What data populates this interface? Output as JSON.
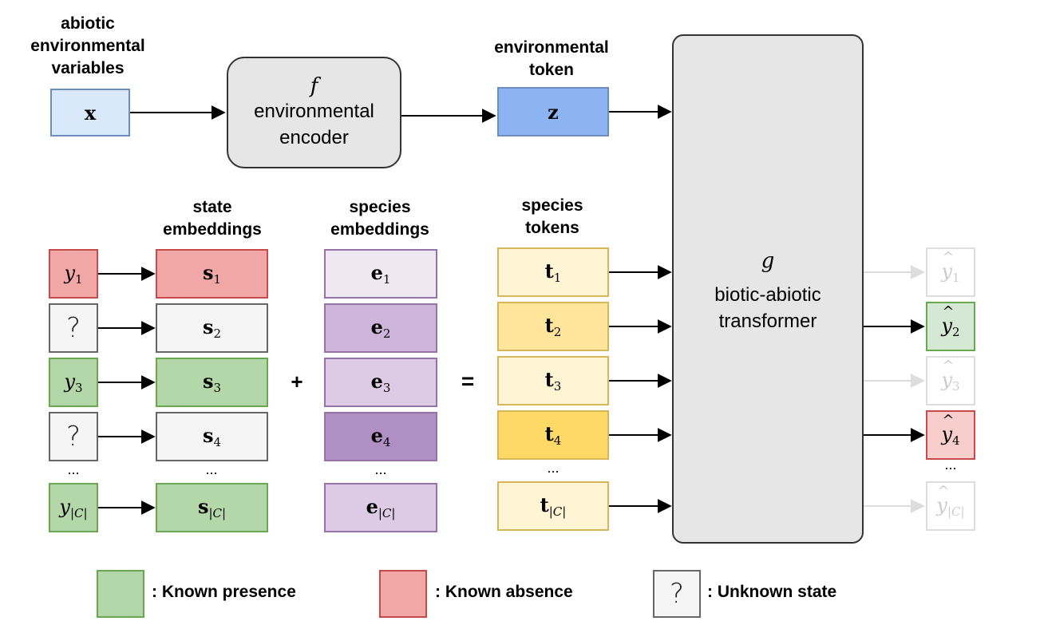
{
  "headers": {
    "abiotic": "abiotic\nenvironmental\nvariables",
    "env_token": "environmental\ntoken",
    "state_emb": "state\nembeddings",
    "species_emb": "species\nembeddings",
    "species_tokens": "species\ntokens"
  },
  "encoder": {
    "symbol": "f",
    "label": "environmental\nencoder"
  },
  "transformer": {
    "symbol": "g",
    "label": "biotic-abiotic\ntransformer"
  },
  "x_symbol": "x",
  "z_symbol": "z",
  "operators": {
    "plus": "+",
    "equals": "="
  },
  "ellipsis": "...",
  "rows": [
    {
      "state": "y",
      "state_sub": "1",
      "known": "absence",
      "s": "s",
      "s_sub": "1",
      "e": "e",
      "e_sub": "1",
      "t": "t",
      "t_sub": "1",
      "yhat": "y",
      "yhat_sub": "1",
      "output_shown": false
    },
    {
      "state": "?",
      "state_sub": "",
      "known": "unknown",
      "s": "s",
      "s_sub": "2",
      "e": "e",
      "e_sub": "2",
      "t": "t",
      "t_sub": "2",
      "yhat": "y",
      "yhat_sub": "2",
      "output_shown": true
    },
    {
      "state": "y",
      "state_sub": "3",
      "known": "presence",
      "s": "s",
      "s_sub": "3",
      "e": "e",
      "e_sub": "3",
      "t": "t",
      "t_sub": "3",
      "yhat": "y",
      "yhat_sub": "3",
      "output_shown": false
    },
    {
      "state": "?",
      "state_sub": "",
      "known": "unknown",
      "s": "s",
      "s_sub": "4",
      "e": "e",
      "e_sub": "4",
      "t": "t",
      "t_sub": "4",
      "yhat": "y",
      "yhat_sub": "4",
      "output_shown": true
    },
    {
      "state": "y",
      "state_sub": "|C|",
      "known": "presence",
      "s": "s",
      "s_sub": "|C|",
      "e": "e",
      "e_sub": "|C|",
      "t": "t",
      "t_sub": "|C|",
      "yhat": "y",
      "yhat_sub": "|C|",
      "output_shown": false
    }
  ],
  "legend": {
    "presence": ": Known presence",
    "absence": ": Known absence",
    "unknown": ": Unknown state",
    "unknown_symbol": "?"
  },
  "colors": {
    "presence_fill": "#b3d7a8",
    "presence_stroke": "#6aa84f",
    "absence_fill": "#f2a7a7",
    "absence_stroke": "#c84b4b",
    "unknown_fill": "#f5f5f5",
    "unknown_stroke": "#666666",
    "x_fill": "#dae8fc",
    "x_stroke": "#6c8ebf",
    "z_fill": "#8db4f2",
    "z_stroke": "#6c8ebf",
    "box_grey": "#e6e6e6",
    "box_grey_stroke": "#333333",
    "species_emb_fills": [
      "#efe8f2",
      "#cdb5d9",
      "#ddcbe5",
      "#b08fc4",
      "#ddcbe5"
    ],
    "species_emb_stroke": "#9673a6",
    "species_tok_fills": [
      "#fff4d4",
      "#ffe59c",
      "#fff4d4",
      "#ffd966",
      "#fff4d4"
    ],
    "species_tok_stroke": "#d6b656",
    "out_presence_fill": "#d5e8d4",
    "out_absence_fill": "#f8cecc",
    "out_faded_stroke": "#dddddd"
  }
}
